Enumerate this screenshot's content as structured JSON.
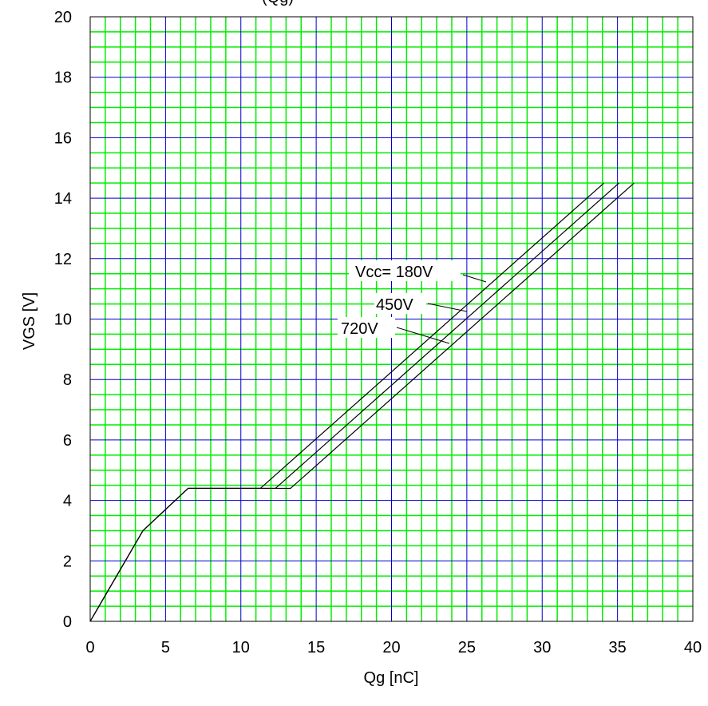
{
  "chart_data": {
    "type": "line",
    "title": "",
    "title_fragment": "(Qg)",
    "xlabel": "Qg [nC]",
    "ylabel": "VGS [V]",
    "xlim": [
      0,
      40
    ],
    "ylim": [
      0,
      20
    ],
    "x_ticks": [
      "0",
      "5",
      "10",
      "15",
      "20",
      "25",
      "30",
      "35",
      "40"
    ],
    "y_ticks": [
      "0",
      "2",
      "4",
      "6",
      "8",
      "10",
      "12",
      "14",
      "16",
      "18",
      "20"
    ],
    "grid": {
      "major": true,
      "minor": true,
      "major_color": "#0000cc",
      "minor_color": "#00ee00"
    },
    "series": [
      {
        "name": "Vcc= 180V",
        "x": [
          0,
          3.5,
          6.5,
          11.3,
          34.1
        ],
        "y": [
          0,
          3.0,
          4.4,
          4.4,
          14.5
        ]
      },
      {
        "name": "450V",
        "x": [
          0,
          3.5,
          6.5,
          12.3,
          35.1
        ],
        "y": [
          0,
          3.0,
          4.4,
          4.4,
          14.5
        ]
      },
      {
        "name": "720V",
        "x": [
          0,
          3.5,
          6.5,
          13.3,
          36.1
        ],
        "y": [
          0,
          3.0,
          4.4,
          4.4,
          14.5
        ]
      }
    ],
    "annotations": [
      {
        "text": "Vcc= 180V",
        "series": "Vcc= 180V"
      },
      {
        "text": "450V",
        "series": "450V"
      },
      {
        "text": "720V",
        "series": "720V"
      }
    ]
  }
}
